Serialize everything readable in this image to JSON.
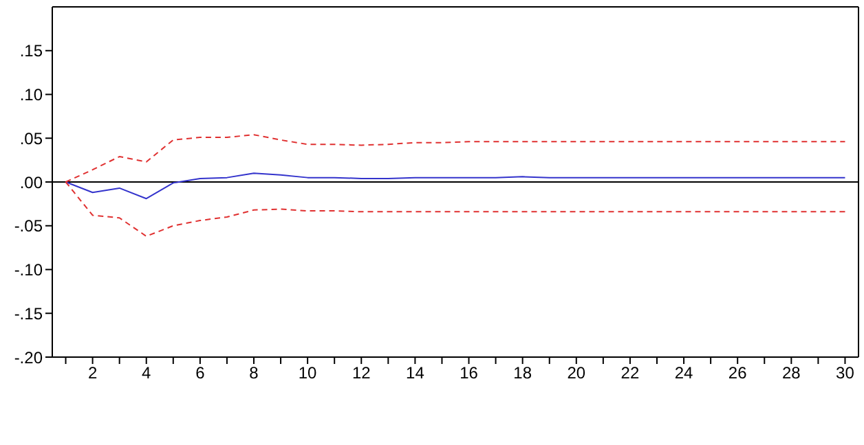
{
  "chart_data": {
    "type": "line",
    "x": [
      1,
      2,
      3,
      4,
      5,
      6,
      7,
      8,
      9,
      10,
      11,
      12,
      13,
      14,
      15,
      16,
      17,
      18,
      19,
      20,
      21,
      22,
      23,
      24,
      25,
      26,
      27,
      28,
      29,
      30
    ],
    "series": [
      {
        "color": "#3333cc",
        "line_style": "solid",
        "values": [
          0,
          -0.012,
          -0.007,
          -0.019,
          -0.001,
          0.004,
          0.005,
          0.01,
          0.008,
          0.005,
          0.005,
          0.004,
          0.004,
          0.005,
          0.005,
          0.005,
          0.005,
          0.006,
          0.005,
          0.005,
          0.005,
          0.005,
          0.005,
          0.005,
          0.005,
          0.005,
          0.005,
          0.005,
          0.005,
          0.005
        ]
      },
      {
        "color": "#e03030",
        "line_style": "dashed",
        "values": [
          0,
          0.014,
          0.029,
          0.023,
          0.048,
          0.051,
          0.051,
          0.054,
          0.048,
          0.043,
          0.043,
          0.042,
          0.043,
          0.045,
          0.045,
          0.046,
          0.046,
          0.046,
          0.046,
          0.046,
          0.046,
          0.046,
          0.046,
          0.046,
          0.046,
          0.046,
          0.046,
          0.046,
          0.046,
          0.046
        ]
      },
      {
        "color": "#e03030",
        "line_style": "dashed",
        "values": [
          0,
          -0.038,
          -0.041,
          -0.062,
          -0.05,
          -0.044,
          -0.04,
          -0.032,
          -0.031,
          -0.033,
          -0.033,
          -0.034,
          -0.034,
          -0.034,
          -0.034,
          -0.034,
          -0.034,
          -0.034,
          -0.034,
          -0.034,
          -0.034,
          -0.034,
          -0.034,
          -0.034,
          -0.034,
          -0.034,
          -0.034,
          -0.034,
          -0.034,
          -0.034
        ]
      }
    ],
    "xlim": [
      0.5,
      30.5
    ],
    "xticks": [
      {
        "value": 1,
        "label": null
      },
      2,
      {
        "value": 3,
        "label": null
      },
      4,
      {
        "value": 5,
        "label": null
      },
      6,
      {
        "value": 7,
        "label": null
      },
      8,
      {
        "value": 9,
        "label": null
      },
      10,
      {
        "value": 11,
        "label": null
      },
      12,
      {
        "value": 13,
        "label": null
      },
      14,
      {
        "value": 15,
        "label": null
      },
      16,
      {
        "value": 17,
        "label": null
      },
      18,
      {
        "value": 19,
        "label": null
      },
      20,
      {
        "value": 21,
        "label": null
      },
      22,
      {
        "value": 23,
        "label": null
      },
      24,
      {
        "value": 25,
        "label": null
      },
      26,
      {
        "value": 27,
        "label": null
      },
      28,
      {
        "value": 29,
        "label": null
      },
      30
    ],
    "ylim": [
      -0.2,
      0.2
    ],
    "yticks": [
      {
        "value": -0.2,
        "label": "-.20"
      },
      {
        "value": -0.15,
        "label": "-.15"
      },
      {
        "value": -0.1,
        "label": "-.10"
      },
      {
        "value": -0.05,
        "label": "-.05"
      },
      {
        "value": 0,
        "label": ".00"
      },
      {
        "value": 0.05,
        "label": ".05"
      },
      {
        "value": 0.1,
        "label": ".10"
      },
      {
        "value": 0.15,
        "label": ".15"
      }
    ],
    "ref_lines": [
      {
        "axis": "y",
        "value": 0,
        "color": "#000000",
        "line_style": "solid"
      }
    ],
    "marker": "none"
  }
}
